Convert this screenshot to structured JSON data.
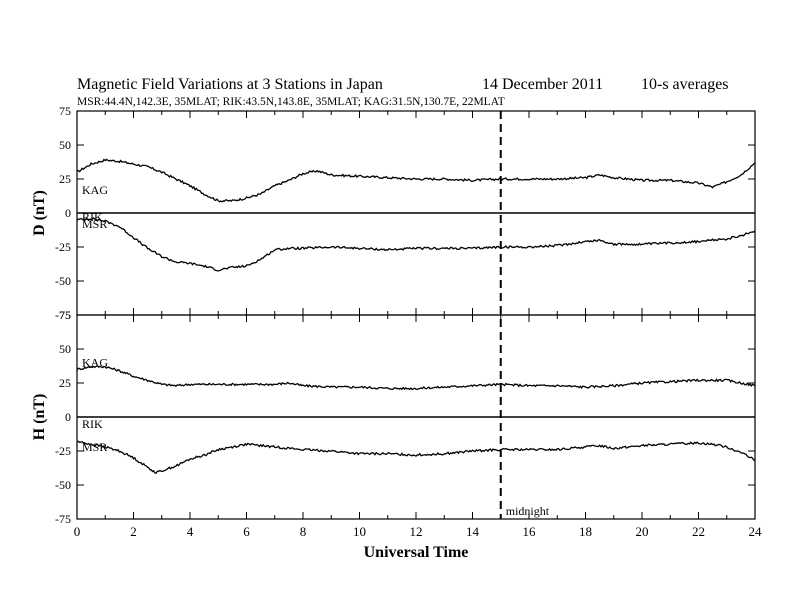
{
  "chart_data": {
    "type": "line",
    "title": "Magnetic Field Variations at 3 Stations in Japan",
    "date": "14 December 2011",
    "averaging": "10-s averages",
    "subtitle": "MSR:44.4N,142.3E, 35MLAT;  RIK:43.5N,143.8E, 35MLAT;  KAG:31.5N,130.7E, 22MLAT",
    "xlabel": "Universal Time",
    "xlim": [
      0,
      24
    ],
    "xticks": [
      0,
      2,
      4,
      6,
      8,
      10,
      12,
      14,
      16,
      18,
      20,
      22,
      24
    ],
    "marker": {
      "x": 15,
      "label": "midnight",
      "style": "dashed"
    },
    "panels": [
      {
        "ylabel": "D (nT)",
        "ylim": [
          -75,
          75
        ],
        "yticks": [
          75,
          50,
          25,
          0,
          -25,
          -50,
          -75
        ],
        "station_labels": [
          {
            "text": "KAG",
            "y": 17
          },
          {
            "text": "RIK",
            "y": -3
          },
          {
            "text": "MSR",
            "y": -8
          }
        ],
        "series": [
          {
            "name": "KAG",
            "x": [
              0,
              0.5,
              1,
              1.5,
              2,
              2.5,
              3,
              3.5,
              4,
              4.5,
              5,
              5.5,
              6,
              6.5,
              7,
              7.5,
              8,
              8.5,
              9,
              10,
              11,
              12,
              13,
              14,
              15,
              16,
              17,
              18,
              18.5,
              19,
              20,
              21,
              22,
              22.5,
              23,
              23.5,
              24
            ],
            "y": [
              30,
              36,
              39,
              38,
              36,
              34,
              30,
              25,
              20,
              14,
              9,
              9,
              11,
              14,
              20,
              24,
              29,
              31,
              28,
              27,
              26,
              25,
              25,
              24,
              25,
              25,
              25,
              26,
              28,
              26,
              24,
              24,
              22,
              19,
              23,
              28,
              37
            ]
          },
          {
            "name": "MSR",
            "x": [
              0,
              0.5,
              1,
              1.5,
              2,
              2.5,
              3,
              3.5,
              4,
              4.5,
              5,
              5.5,
              6,
              6.5,
              7,
              7.5,
              8,
              9,
              10,
              11,
              12,
              13,
              14,
              15,
              16,
              17,
              18,
              18.5,
              19,
              20,
              21,
              22,
              23,
              23.5,
              24
            ],
            "y": [
              -5,
              -4,
              -6,
              -10,
              -18,
              -26,
              -32,
              -36,
              -37,
              -39,
              -42,
              -40,
              -39,
              -34,
              -27,
              -26,
              -26,
              -25,
              -26,
              -27,
              -26,
              -26,
              -26,
              -25,
              -25,
              -24,
              -21,
              -20,
              -23,
              -23,
              -22,
              -21,
              -19,
              -17,
              -13
            ]
          }
        ]
      },
      {
        "ylabel": "H (nT)",
        "ylim": [
          -75,
          75
        ],
        "yticks": [
          75,
          50,
          25,
          0,
          -25,
          -50,
          -75
        ],
        "station_labels": [
          {
            "text": "KAG",
            "y": 40
          },
          {
            "text": "RIK",
            "y": -5
          },
          {
            "text": "MSR",
            "y": -22
          }
        ],
        "series": [
          {
            "name": "KAG",
            "x": [
              0,
              0.5,
              1,
              1.5,
              2,
              2.5,
              3,
              3.5,
              4,
              5,
              6,
              7,
              7.5,
              8,
              9,
              10,
              11,
              12,
              13,
              14,
              15,
              16,
              17,
              18,
              19,
              20,
              21,
              22,
              23,
              23.5,
              24
            ],
            "y": [
              35,
              37,
              37,
              34,
              30,
              27,
              24,
              23,
              24,
              24,
              24,
              24,
              25,
              23,
              22,
              22,
              21,
              21,
              22,
              23,
              24,
              23,
              23,
              22,
              23,
              25,
              26,
              27,
              27,
              25,
              23
            ]
          },
          {
            "name": "MSR",
            "x": [
              0,
              0.5,
              1,
              1.5,
              2,
              2.5,
              2.8,
              3.5,
              4,
              4.5,
              5,
              5.5,
              6,
              7,
              8,
              9,
              10,
              11,
              12,
              13,
              14,
              15,
              16,
              17,
              18,
              18.5,
              19,
              20,
              21,
              22,
              22.5,
              23,
              23.5,
              24
            ],
            "y": [
              -18,
              -20,
              -22,
              -25,
              -30,
              -37,
              -41,
              -36,
              -31,
              -28,
              -24,
              -22,
              -20,
              -22,
              -24,
              -25,
              -27,
              -27,
              -28,
              -27,
              -25,
              -24,
              -24,
              -24,
              -22,
              -21,
              -23,
              -21,
              -20,
              -19,
              -20,
              -22,
              -26,
              -32
            ]
          }
        ]
      }
    ]
  }
}
